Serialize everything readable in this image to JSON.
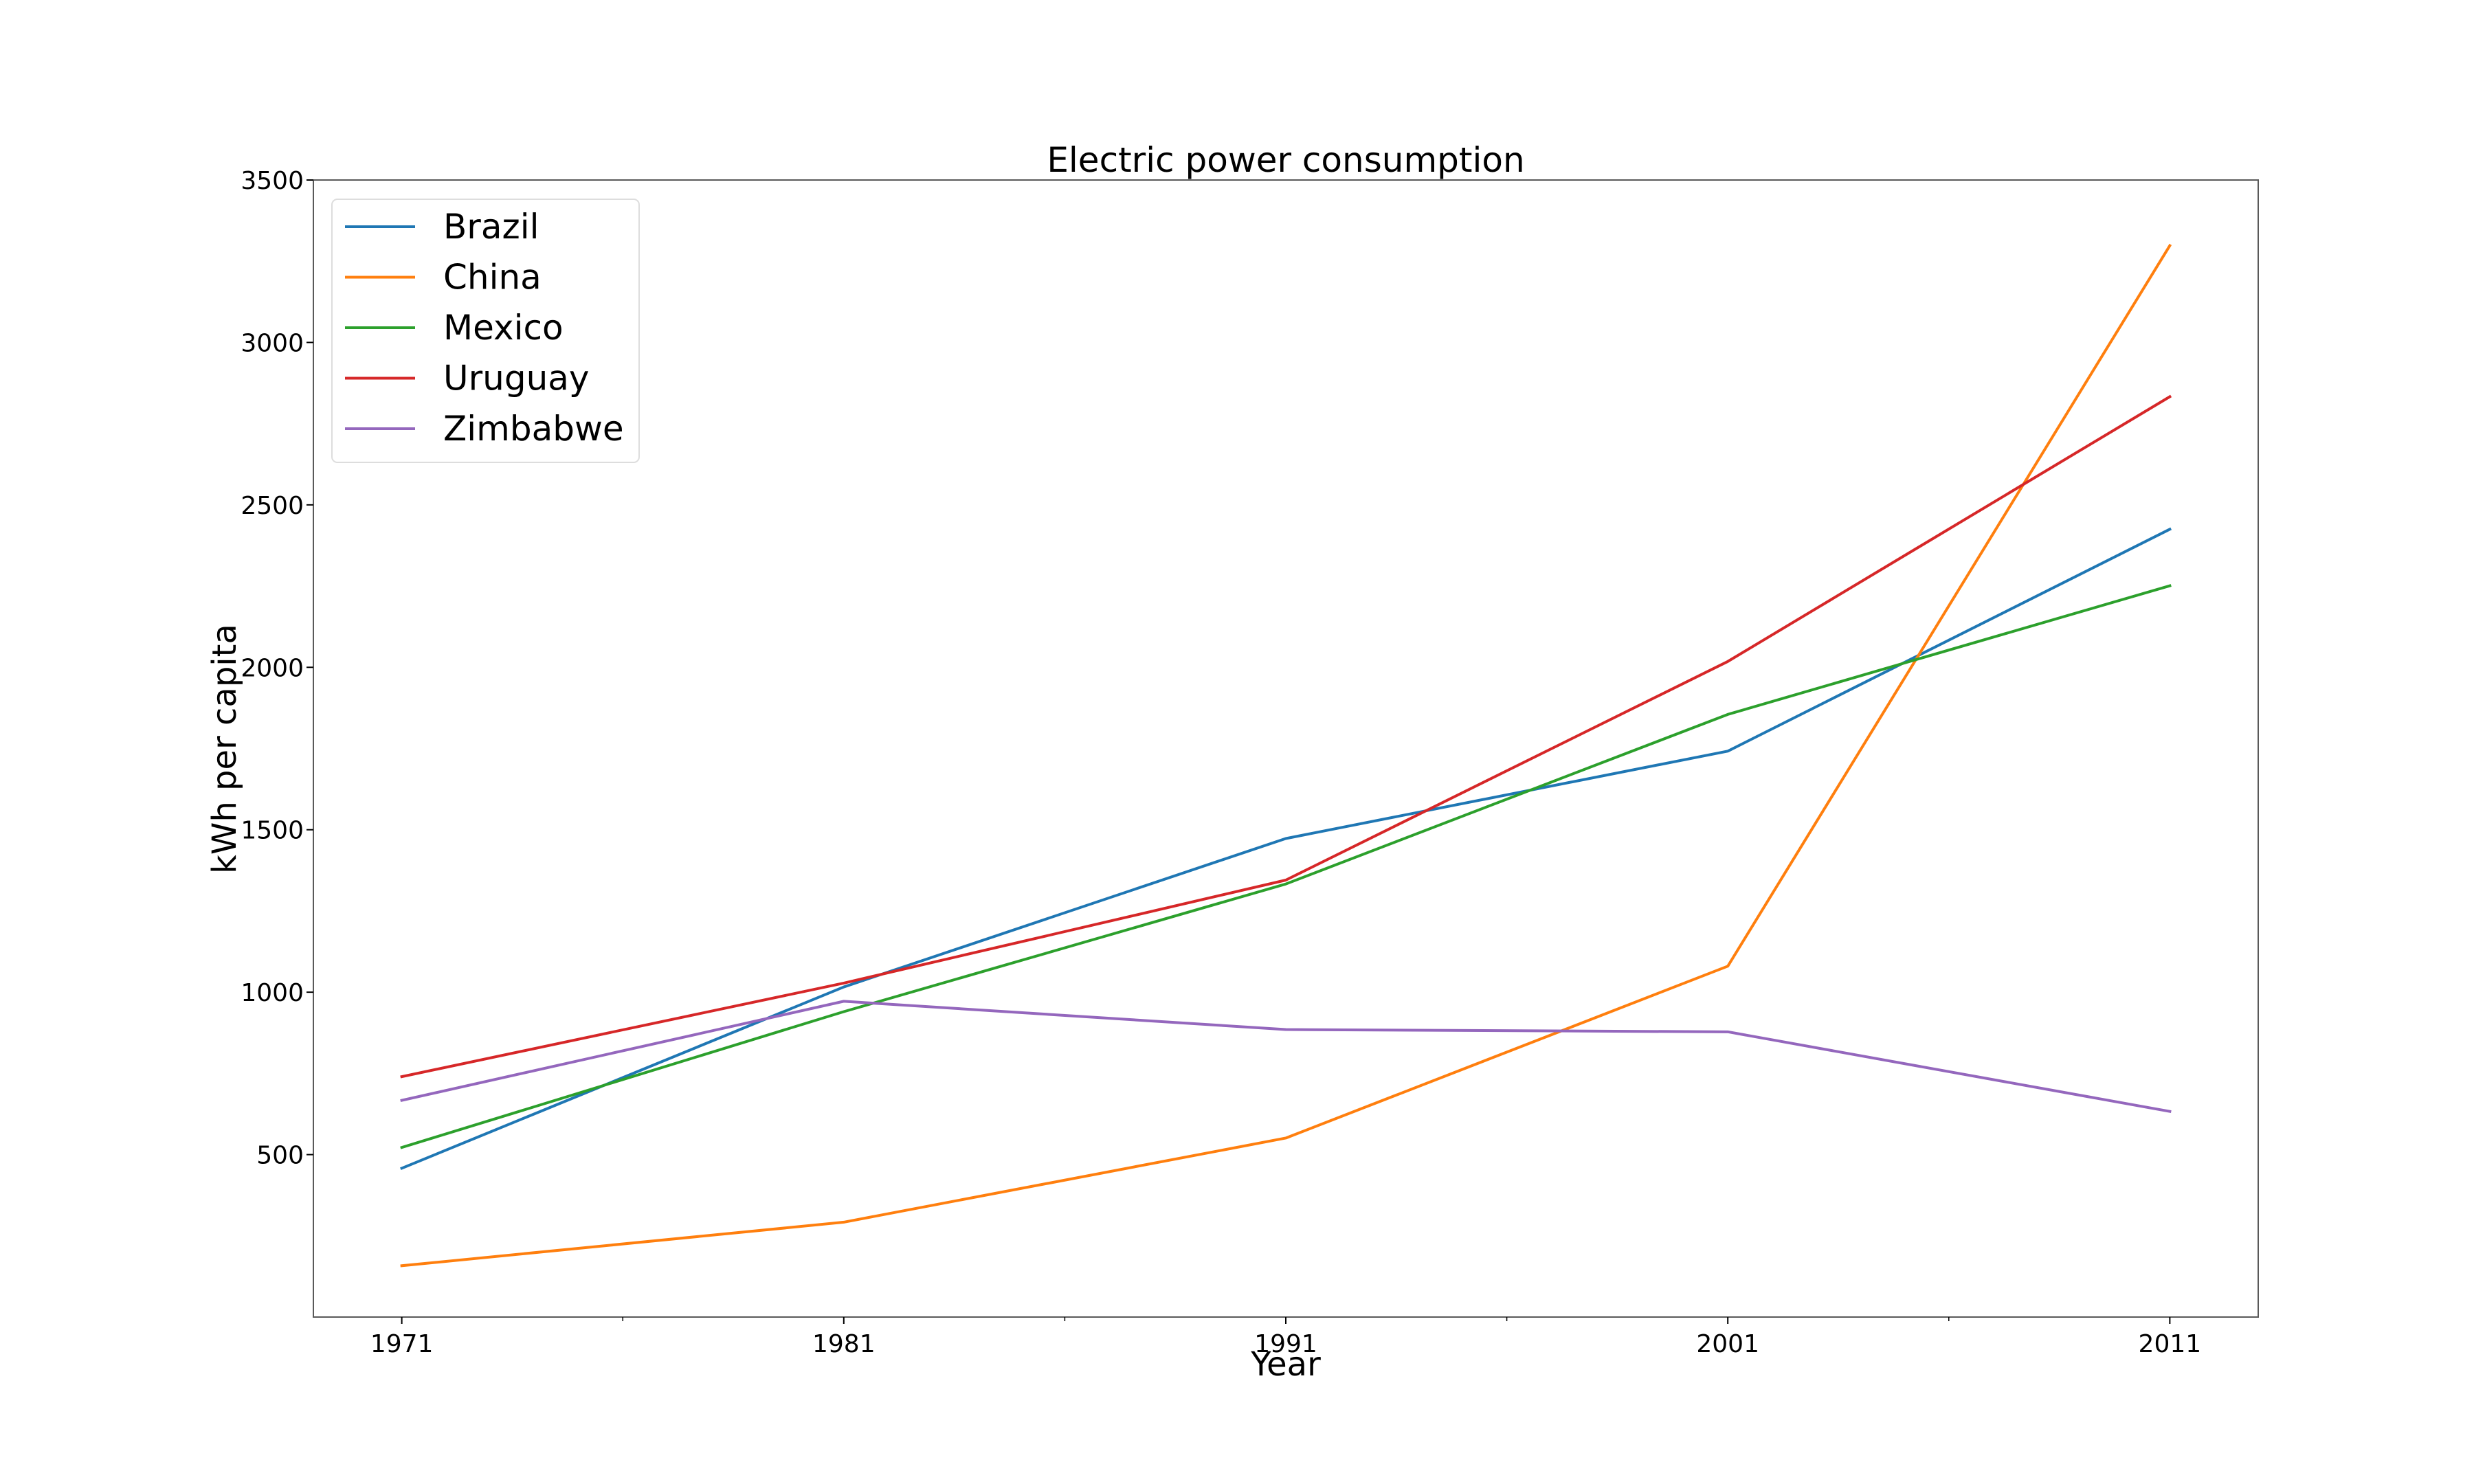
{
  "chart_data": {
    "type": "line",
    "title": "Electric power consumption",
    "xlabel": "Year",
    "ylabel": "kWh per capita",
    "x": [
      1971,
      1981,
      1991,
      2001,
      2011
    ],
    "xticks": [
      "1971",
      "1981",
      "1991",
      "2001",
      "2011"
    ],
    "xlim": [
      1969,
      2013
    ],
    "yticks": [
      "500",
      "1000",
      "1500",
      "2000",
      "2500",
      "3000",
      "3500"
    ],
    "ytick_values": [
      500,
      1000,
      1500,
      2000,
      2500,
      3000,
      3500
    ],
    "ylim": [
      0,
      3500
    ],
    "grid": false,
    "legend": "top-left",
    "series": [
      {
        "name": "Brazil",
        "color": "#1f77b4",
        "values": [
          458,
          1016,
          1473,
          1742,
          2425
        ]
      },
      {
        "name": "China",
        "color": "#ff7f0e",
        "values": [
          158,
          292,
          551,
          1080,
          3298
        ]
      },
      {
        "name": "Mexico",
        "color": "#2ca02c",
        "values": [
          522,
          940,
          1333,
          1855,
          2251
        ]
      },
      {
        "name": "Uruguay",
        "color": "#d62728",
        "values": [
          740,
          1028,
          1345,
          2018,
          2833
        ]
      },
      {
        "name": "Zimbabwe",
        "color": "#9467bd",
        "values": [
          667,
          972,
          885,
          878,
          633
        ]
      }
    ]
  }
}
